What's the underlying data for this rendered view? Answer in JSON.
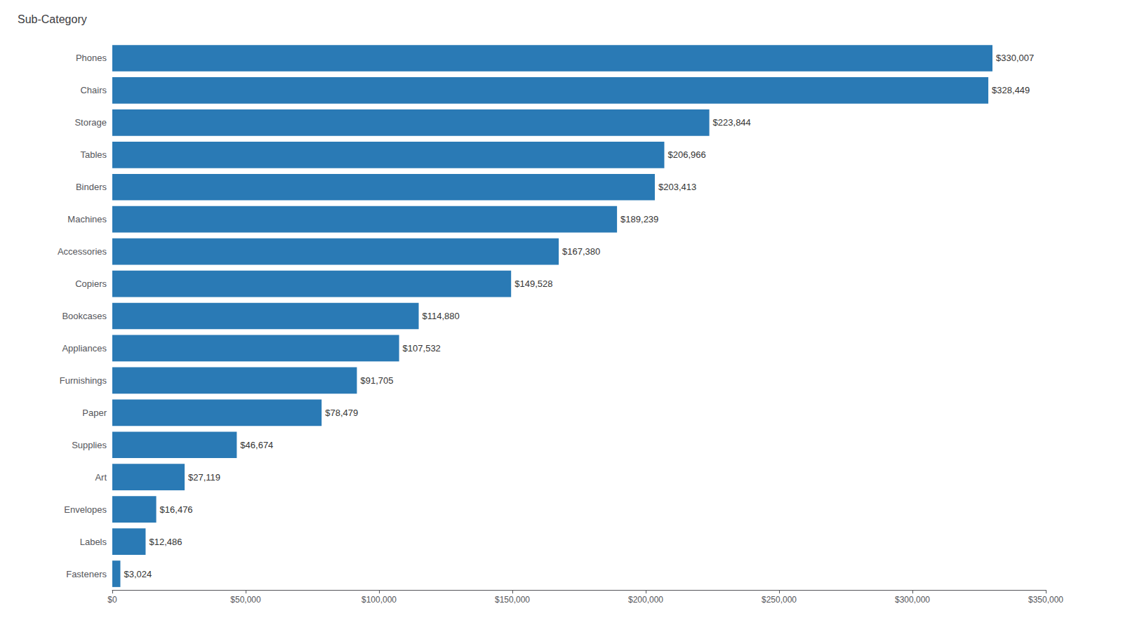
{
  "chart_data": {
    "type": "bar",
    "orientation": "horizontal",
    "title": "Sub-Category",
    "categories": [
      "Phones",
      "Chairs",
      "Storage",
      "Tables",
      "Binders",
      "Machines",
      "Accessories",
      "Copiers",
      "Bookcases",
      "Appliances",
      "Furnishings",
      "Paper",
      "Supplies",
      "Art",
      "Envelopes",
      "Labels",
      "Fasteners"
    ],
    "values": [
      330007,
      328449,
      223844,
      206966,
      203413,
      189239,
      167380,
      149528,
      114880,
      107532,
      91705,
      78479,
      46674,
      27119,
      16476,
      12486,
      3024
    ],
    "value_labels": [
      "$330,007",
      "$328,449",
      "$223,844",
      "$206,966",
      "$203,413",
      "$189,239",
      "$167,380",
      "$149,528",
      "$114,880",
      "$107,532",
      "$91,705",
      "$78,479",
      "$46,674",
      "$27,119",
      "$16,476",
      "$12,486",
      "$3,024"
    ],
    "data_labels": true,
    "color": "#2a7ab5",
    "xlim": [
      0,
      350000
    ],
    "xticks": [
      {
        "value": 0,
        "label": "$0"
      },
      {
        "value": 50000,
        "label": "$50,000"
      },
      {
        "value": 100000,
        "label": "$100,000"
      },
      {
        "value": 150000,
        "label": "$150,000"
      },
      {
        "value": 200000,
        "label": "$200,000"
      },
      {
        "value": 250000,
        "label": "$250,000"
      },
      {
        "value": 300000,
        "label": "$300,000"
      },
      {
        "value": 350000,
        "label": "$350,000"
      }
    ],
    "grid": false
  }
}
